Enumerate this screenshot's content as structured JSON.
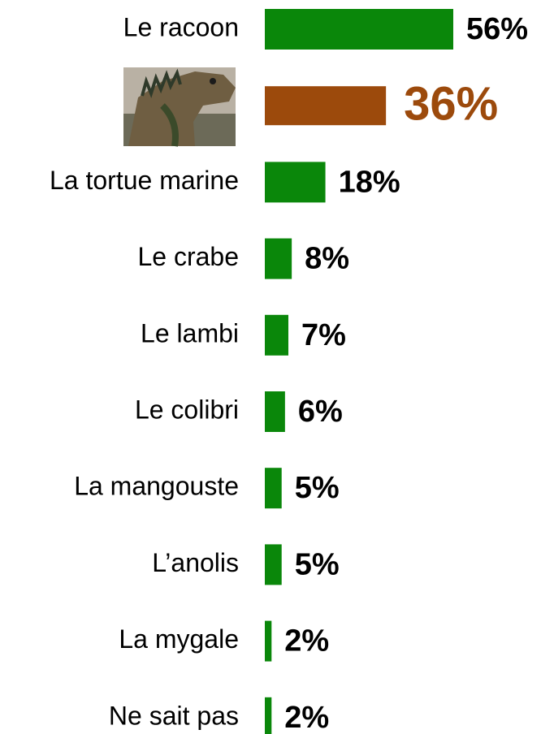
{
  "chart_data": {
    "type": "barh",
    "categories": [
      "Le racoon",
      null,
      "La tortue marine",
      "Le crabe",
      "Le lambi",
      "Le colibri",
      "La mangouste",
      "L’anolis",
      "La mygale",
      "Ne sait pas"
    ],
    "values": [
      56,
      36,
      18,
      8,
      7,
      6,
      5,
      5,
      2,
      2
    ],
    "value_labels": [
      "56%",
      "36%",
      "18%",
      "8%",
      "7%",
      "6%",
      "5%",
      "5%",
      "2%",
      "2%"
    ],
    "colors": [
      "#0a870a",
      "#9c4a0c",
      "#0a870a",
      "#0a870a",
      "#0a870a",
      "#0a870a",
      "#0a870a",
      "#0a870a",
      "#0a870a",
      "#0a870a"
    ]
  }
}
